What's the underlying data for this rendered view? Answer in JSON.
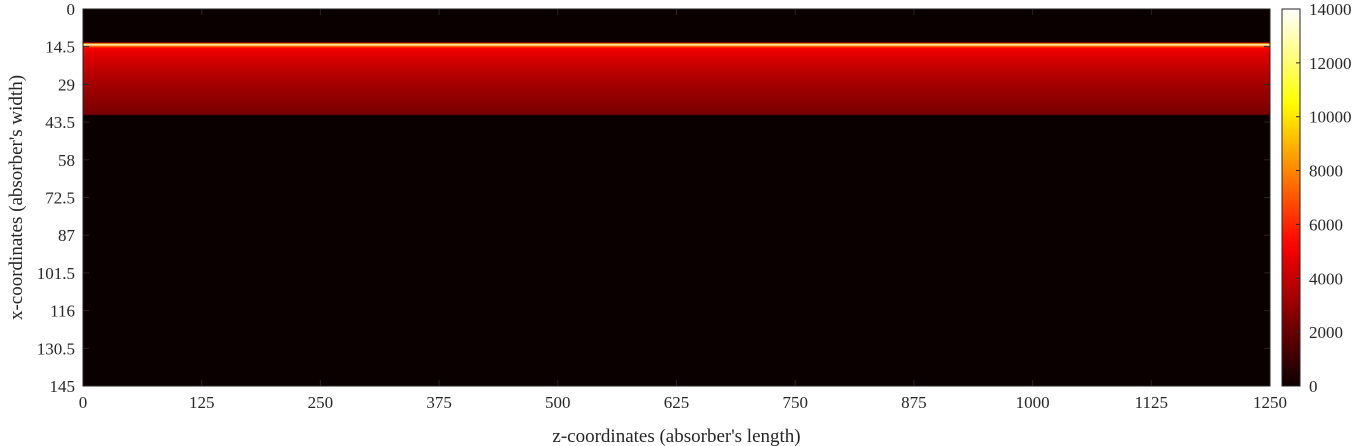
{
  "chart_data": {
    "type": "heatmap",
    "title": "",
    "xlabel": "z-coordinates (absorber's length)",
    "ylabel": "x-coordinates (absorber's width)",
    "xlim": [
      0,
      1250
    ],
    "ylim": [
      0,
      145
    ],
    "y_direction": "reversed",
    "x_ticks": [
      "0",
      "125",
      "250",
      "375",
      "500",
      "625",
      "750",
      "875",
      "1000",
      "1125",
      "1250"
    ],
    "y_ticks": [
      "0",
      "14.5",
      "29",
      "43.5",
      "58",
      "72.5",
      "87",
      "101.5",
      "116",
      "130.5",
      "145"
    ],
    "colormap": "hot",
    "colorbar": {
      "min": 0,
      "max": 14000,
      "ticks": [
        "0",
        "2000",
        "4000",
        "6000",
        "8000",
        "10000",
        "12000",
        "14000"
      ]
    },
    "profile_along_x": {
      "description_constant_along_z": true,
      "x": [
        0,
        12.5,
        13.0,
        13.4,
        13.8,
        14.2,
        15.0,
        17,
        20,
        25,
        30,
        35,
        39,
        40.5,
        41,
        145
      ],
      "values": [
        0,
        0,
        3000,
        9000,
        14000,
        8000,
        5200,
        4700,
        4300,
        3700,
        3200,
        2800,
        2500,
        2300,
        0,
        0
      ]
    }
  }
}
